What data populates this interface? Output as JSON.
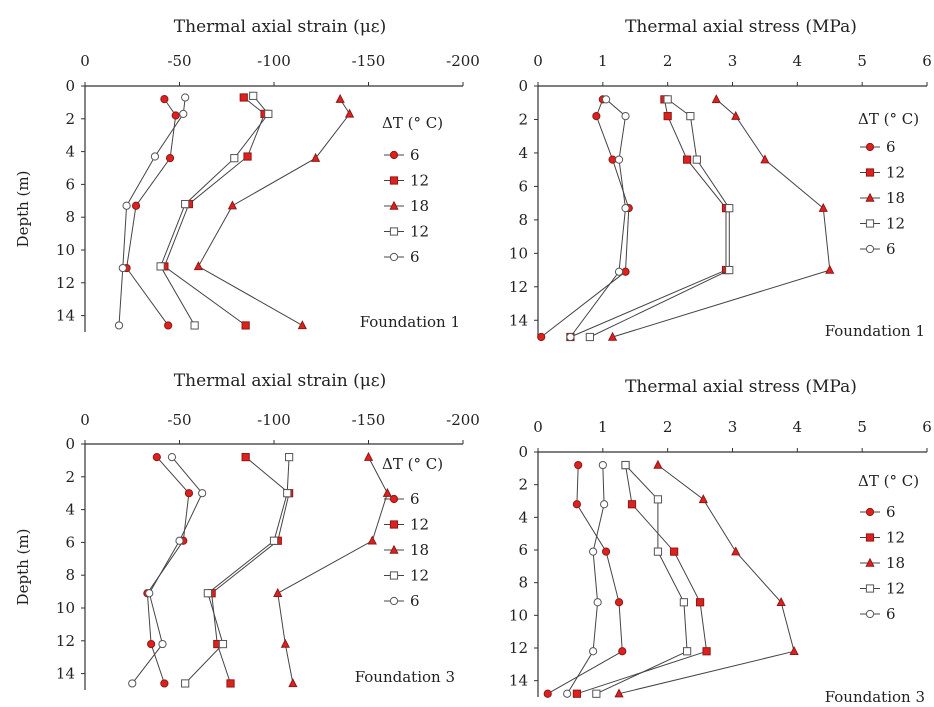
{
  "figure": {
    "style": {
      "axis_color": "#333333",
      "marker_fill_red": "#e0201c",
      "marker_edge_red": "#8b1a1a",
      "marker_fill_white": "#ffffff",
      "marker_edge_gray": "#555555",
      "line_color": "#444444"
    }
  },
  "chart_data": [
    {
      "type": "line",
      "title": "Thermal axial strain (με)",
      "xlabel": "",
      "ylabel": "Depth (m)",
      "xlim": [
        0,
        -200
      ],
      "ylim": [
        0,
        15
      ],
      "x_ticks": [
        "0",
        "-50",
        "-100",
        "-150",
        "-200"
      ],
      "y_ticks": [
        "0",
        "2",
        "4",
        "6",
        "8",
        "10",
        "12",
        "14"
      ],
      "orientation": "depth-profile (x values plotted against depth)",
      "legend_title": "ΔT (° C)",
      "legend_placement": "right",
      "annotation": "Foundation 1",
      "series": [
        {
          "name": "6",
          "marker": "circle-filled",
          "depth": [
            0.8,
            1.8,
            4.4,
            7.3,
            11.1,
            14.6
          ],
          "values": [
            -42,
            -48,
            -45,
            -27,
            -22,
            -44
          ]
        },
        {
          "name": "12",
          "marker": "square-filled",
          "depth": [
            0.7,
            1.7,
            4.3,
            7.2,
            11.0,
            14.6
          ],
          "values": [
            -84,
            -95,
            -86,
            -55,
            -42,
            -85
          ]
        },
        {
          "name": "18",
          "marker": "triangle-filled",
          "depth": [
            0.8,
            1.7,
            4.4,
            7.3,
            11.0,
            14.6
          ],
          "values": [
            -135,
            -140,
            -122,
            -78,
            -60,
            -115
          ]
        },
        {
          "name": "12",
          "marker": "square-open",
          "depth": [
            0.6,
            1.7,
            4.4,
            7.2,
            11.0,
            14.6
          ],
          "values": [
            -89,
            -97,
            -79,
            -53,
            -40,
            -58
          ]
        },
        {
          "name": "6",
          "marker": "circle-open",
          "depth": [
            0.7,
            1.7,
            4.3,
            7.3,
            11.1,
            14.6
          ],
          "values": [
            -53,
            -52,
            -37,
            -22,
            -20,
            -18
          ]
        }
      ]
    },
    {
      "type": "line",
      "title": "Thermal axial stress (MPa)",
      "xlabel": "",
      "ylabel": "",
      "xlim": [
        0,
        6
      ],
      "ylim": [
        0,
        15
      ],
      "x_ticks": [
        "0",
        "1",
        "2",
        "3",
        "4",
        "5",
        "6"
      ],
      "y_ticks": [
        "0",
        "2",
        "4",
        "6",
        "8",
        "10",
        "12",
        "14"
      ],
      "orientation": "depth-profile (x values plotted against depth)",
      "legend_title": "ΔT (° C)",
      "legend_placement": "right",
      "annotation": "Foundation 1",
      "series": [
        {
          "name": "6",
          "marker": "circle-filled",
          "depth": [
            0.8,
            1.8,
            4.4,
            7.3,
            11.1,
            15.0
          ],
          "values": [
            1.0,
            0.9,
            1.15,
            1.4,
            1.35,
            0.05
          ]
        },
        {
          "name": "12",
          "marker": "square-filled",
          "depth": [
            0.8,
            1.8,
            4.4,
            7.3,
            11.0,
            15.0
          ],
          "values": [
            1.95,
            2.0,
            2.3,
            2.9,
            2.9,
            0.5
          ]
        },
        {
          "name": "18",
          "marker": "triangle-filled",
          "depth": [
            0.8,
            1.8,
            4.4,
            7.3,
            11.0,
            15.0
          ],
          "values": [
            2.75,
            3.05,
            3.5,
            4.4,
            4.5,
            1.15
          ]
        },
        {
          "name": "12",
          "marker": "square-open",
          "depth": [
            0.8,
            1.8,
            4.4,
            7.3,
            11.0,
            15.0
          ],
          "values": [
            2.0,
            2.35,
            2.45,
            2.95,
            2.95,
            0.8
          ]
        },
        {
          "name": "6",
          "marker": "circle-open",
          "depth": [
            0.8,
            1.8,
            4.4,
            7.3,
            11.1,
            15.0
          ],
          "values": [
            1.05,
            1.35,
            1.25,
            1.35,
            1.25,
            0.5
          ]
        }
      ]
    },
    {
      "type": "line",
      "title": "Thermal axial strain (με)",
      "xlabel": "",
      "ylabel": "Depth (m)",
      "xlim": [
        0,
        -200
      ],
      "ylim": [
        0,
        15
      ],
      "x_ticks": [
        "0",
        "-50",
        "-100",
        "-150",
        "-200"
      ],
      "y_ticks": [
        "0",
        "2",
        "4",
        "6",
        "8",
        "10",
        "12",
        "14"
      ],
      "orientation": "depth-profile (x values plotted against depth)",
      "legend_title": "ΔT (° C)",
      "legend_placement": "right",
      "annotation": "Foundation 3",
      "series": [
        {
          "name": "6",
          "marker": "circle-filled",
          "depth": [
            0.8,
            3.0,
            5.9,
            9.1,
            12.2,
            14.6
          ],
          "values": [
            -38,
            -55,
            -52,
            -33,
            -35,
            -42
          ]
        },
        {
          "name": "12",
          "marker": "square-filled",
          "depth": [
            0.8,
            3.0,
            5.9,
            9.1,
            12.2,
            14.6
          ],
          "values": [
            -85,
            -108,
            -102,
            -67,
            -70,
            -77
          ]
        },
        {
          "name": "18",
          "marker": "triangle-filled",
          "depth": [
            0.8,
            3.0,
            5.9,
            9.1,
            12.2,
            14.6
          ],
          "values": [
            -150,
            -160,
            -152,
            -102,
            -106,
            -110
          ]
        },
        {
          "name": "12",
          "marker": "square-open",
          "depth": [
            0.8,
            3.0,
            5.9,
            9.1,
            12.2,
            14.6
          ],
          "values": [
            -108,
            -107,
            -100,
            -65,
            -73,
            -53
          ]
        },
        {
          "name": "6",
          "marker": "circle-open",
          "depth": [
            0.8,
            3.0,
            5.9,
            9.1,
            12.2,
            14.6
          ],
          "values": [
            -46,
            -62,
            -50,
            -34,
            -41,
            -25
          ]
        }
      ]
    },
    {
      "type": "line",
      "title": "Thermal axial stress (MPa)",
      "xlabel": "",
      "ylabel": "",
      "xlim": [
        0,
        6
      ],
      "ylim": [
        0,
        15
      ],
      "x_ticks": [
        "0",
        "1",
        "2",
        "3",
        "4",
        "5",
        "6"
      ],
      "y_ticks": [
        "0",
        "2",
        "4",
        "6",
        "8",
        "10",
        "12",
        "14"
      ],
      "orientation": "depth-profile (x values plotted against depth)",
      "legend_title": "ΔT (° C)",
      "legend_placement": "right",
      "annotation": "Foundation 3",
      "series": [
        {
          "name": "6",
          "marker": "circle-filled",
          "depth": [
            0.8,
            3.2,
            6.1,
            9.2,
            12.2,
            14.8
          ],
          "values": [
            0.62,
            0.6,
            1.05,
            1.25,
            1.3,
            0.15
          ]
        },
        {
          "name": "12",
          "marker": "square-filled",
          "depth": [
            0.8,
            3.2,
            6.1,
            9.2,
            12.2,
            14.8
          ],
          "values": [
            1.35,
            1.45,
            2.1,
            2.5,
            2.6,
            0.6
          ]
        },
        {
          "name": "18",
          "marker": "triangle-filled",
          "depth": [
            0.8,
            2.9,
            6.1,
            9.2,
            12.2,
            14.8
          ],
          "values": [
            1.85,
            2.55,
            3.05,
            3.75,
            3.95,
            1.25
          ]
        },
        {
          "name": "12",
          "marker": "square-open",
          "depth": [
            0.8,
            2.9,
            6.1,
            9.2,
            12.2,
            14.8
          ],
          "values": [
            1.35,
            1.85,
            1.85,
            2.25,
            2.3,
            0.9
          ]
        },
        {
          "name": "6",
          "marker": "circle-open",
          "depth": [
            0.8,
            3.2,
            6.1,
            9.2,
            12.2,
            14.8
          ],
          "values": [
            1.0,
            1.02,
            0.85,
            0.92,
            0.85,
            0.45
          ]
        }
      ]
    }
  ]
}
